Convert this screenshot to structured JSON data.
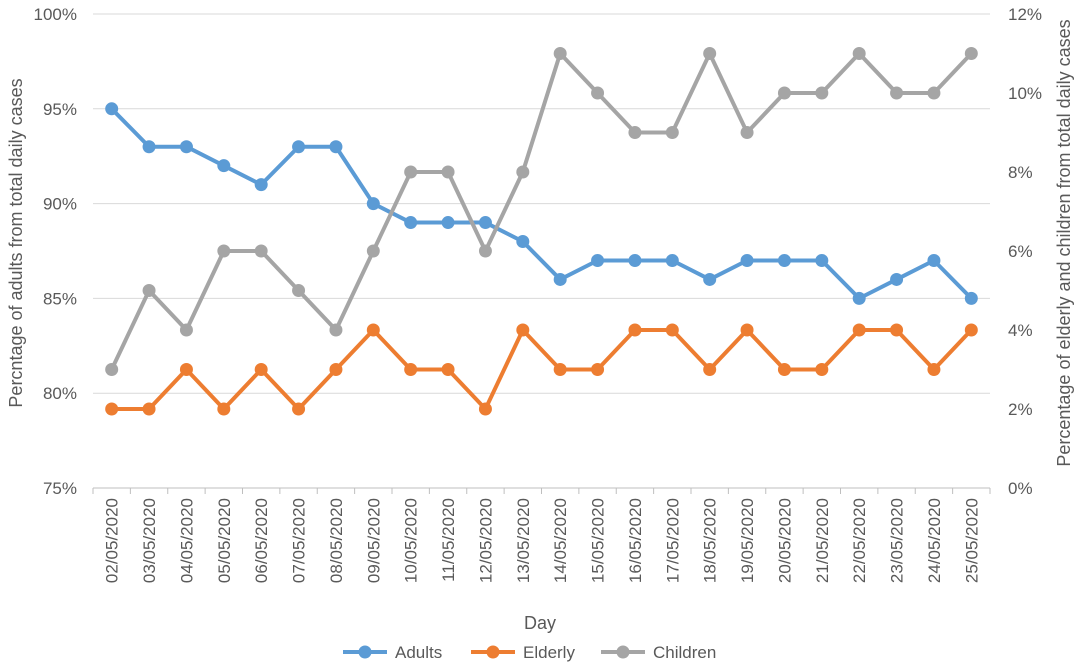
{
  "chart_data": {
    "type": "line",
    "title": "",
    "xlabel": "Day",
    "ylabel_left": "Percntage of adults from total daily cases",
    "ylabel_right": "Percentage of elderly and children from total daily cases",
    "categories": [
      "02/05/2020",
      "03/05/2020",
      "04/05/2020",
      "05/05/2020",
      "06/05/2020",
      "07/05/2020",
      "08/05/2020",
      "09/05/2020",
      "10/05/2020",
      "11/05/2020",
      "12/05/2020",
      "13/05/2020",
      "14/05/2020",
      "15/05/2020",
      "16/05/2020",
      "17/05/2020",
      "18/05/2020",
      "19/05/2020",
      "20/05/2020",
      "21/05/2020",
      "22/05/2020",
      "23/05/2020",
      "24/05/2020",
      "25/05/2020"
    ],
    "ylim_left": [
      75,
      100
    ],
    "ylim_right": [
      0,
      12
    ],
    "yticks_left": [
      "75%",
      "80%",
      "85%",
      "90%",
      "95%",
      "100%"
    ],
    "yticks_right": [
      "0%",
      "2%",
      "4%",
      "6%",
      "8%",
      "10%",
      "12%"
    ],
    "grid": true,
    "legend_position": "bottom",
    "series": [
      {
        "name": "Adults",
        "axis": "left",
        "color": "#5B9BD5",
        "values": [
          95,
          93,
          93,
          92,
          91,
          93,
          93,
          90,
          89,
          89,
          89,
          88,
          86,
          87,
          87,
          87,
          86,
          87,
          87,
          87,
          85,
          86,
          87,
          85
        ]
      },
      {
        "name": "Elderly",
        "axis": "right",
        "color": "#ED7D31",
        "values": [
          2,
          2,
          3,
          2,
          3,
          2,
          3,
          4,
          3,
          3,
          2,
          4,
          3,
          3,
          4,
          4,
          3,
          4,
          3,
          3,
          4,
          4,
          3,
          4
        ]
      },
      {
        "name": "Children",
        "axis": "right",
        "color": "#A5A5A5",
        "values": [
          3,
          5,
          4,
          6,
          6,
          5,
          4,
          6,
          8,
          8,
          6,
          8,
          11,
          10,
          9,
          9,
          11,
          9,
          10,
          10,
          11,
          10,
          10,
          11
        ]
      }
    ]
  }
}
